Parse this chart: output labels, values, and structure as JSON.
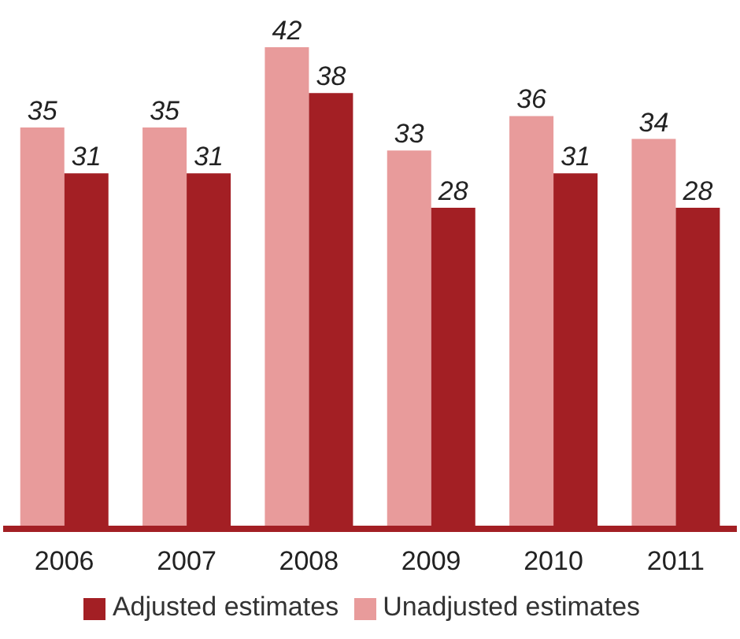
{
  "chart_data": {
    "type": "bar",
    "categories": [
      "2006",
      "2007",
      "2008",
      "2009",
      "2010",
      "2011"
    ],
    "series": [
      {
        "name": "Unadjusted estimates",
        "color": "#e89b9b",
        "values": [
          35,
          35,
          42,
          33,
          36,
          34
        ]
      },
      {
        "name": "Adjusted estimates",
        "color": "#a31f24",
        "values": [
          31,
          31,
          38,
          28,
          31,
          28
        ]
      }
    ],
    "data_labels": true,
    "legend": "bottom",
    "grid": false
  }
}
